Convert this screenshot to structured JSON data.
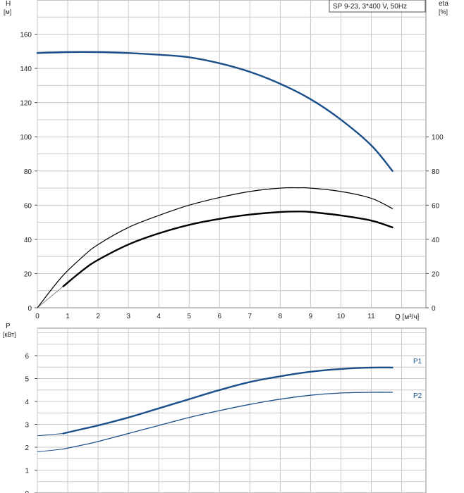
{
  "chart_data": [
    {
      "type": "line",
      "title": "SP 9-23, 3*400 V, 50Hz",
      "ylabel_left": [
        "H",
        "[м]"
      ],
      "ylabel_right": [
        "eta",
        "[%]"
      ],
      "xlabel": "Q [м³/ч]",
      "x_ticks": [
        "0",
        "1",
        "2",
        "3",
        "4",
        "5",
        "6",
        "7",
        "8",
        "9",
        "10",
        "11"
      ],
      "y_left_ticks": [
        "0",
        "20",
        "40",
        "60",
        "80",
        "100",
        "120",
        "140",
        "160"
      ],
      "y_right_ticks": [
        "0",
        "20",
        "40",
        "60",
        "80",
        "100"
      ],
      "xlim": [
        0,
        12.8
      ],
      "ylim": [
        0,
        180
      ],
      "grid": true,
      "colors": {
        "head": "#1b4f8a",
        "efficiency": "#000000",
        "grid": "#c8c8c8"
      },
      "series": [
        {
          "key": "head",
          "axis": "left",
          "x": [
            0,
            1,
            2,
            3,
            4,
            5,
            6,
            7,
            8,
            9,
            10,
            11,
            11.7
          ],
          "values": [
            149,
            149.5,
            149.5,
            149,
            148,
            146.5,
            143,
            138,
            131,
            122,
            110,
            95,
            80
          ]
        },
        {
          "key": "eta",
          "axis": "right",
          "x": [
            0,
            0.8,
            1.5,
            2,
            3,
            4,
            5,
            6,
            7,
            8,
            8.6,
            9,
            10,
            11,
            11.7
          ],
          "values": [
            0,
            18,
            30,
            37,
            47,
            54,
            60,
            64.5,
            68,
            70,
            70.2,
            70,
            68,
            64,
            58
          ]
        },
        {
          "key": "eta-total",
          "axis": "right",
          "x": [
            0.85,
            1.5,
            2,
            3,
            4,
            5,
            6,
            7,
            8,
            8.6,
            9,
            10,
            11,
            11.7
          ],
          "values": [
            12.5,
            22,
            28,
            37,
            43.5,
            48.5,
            52,
            54.5,
            56,
            56.3,
            56,
            54,
            51,
            47
          ]
        }
      ]
    },
    {
      "type": "line",
      "ylabel": [
        "P",
        "[кВт]"
      ],
      "y_ticks": [
        "0",
        "1",
        "2",
        "3",
        "4",
        "5",
        "6"
      ],
      "xlim": [
        0,
        12.8
      ],
      "ylim": [
        0,
        7.2
      ],
      "grid": true,
      "colors": {
        "line": "#1b4f8a"
      },
      "series": [
        {
          "name": "P1",
          "x": [
            0,
            0.85,
            1.5,
            2,
            3,
            4,
            5,
            6,
            7,
            8,
            9,
            10,
            11,
            11.7
          ],
          "values": [
            2.5,
            2.6,
            2.8,
            2.95,
            3.3,
            3.7,
            4.1,
            4.5,
            4.85,
            5.1,
            5.3,
            5.42,
            5.48,
            5.48
          ]
        },
        {
          "name": "P2",
          "x": [
            0,
            0.85,
            1.5,
            2,
            3,
            4,
            5,
            6,
            7,
            8,
            9,
            10,
            11,
            11.7
          ],
          "values": [
            1.8,
            1.92,
            2.1,
            2.25,
            2.6,
            2.95,
            3.3,
            3.6,
            3.87,
            4.1,
            4.27,
            4.37,
            4.4,
            4.4
          ]
        }
      ]
    }
  ]
}
